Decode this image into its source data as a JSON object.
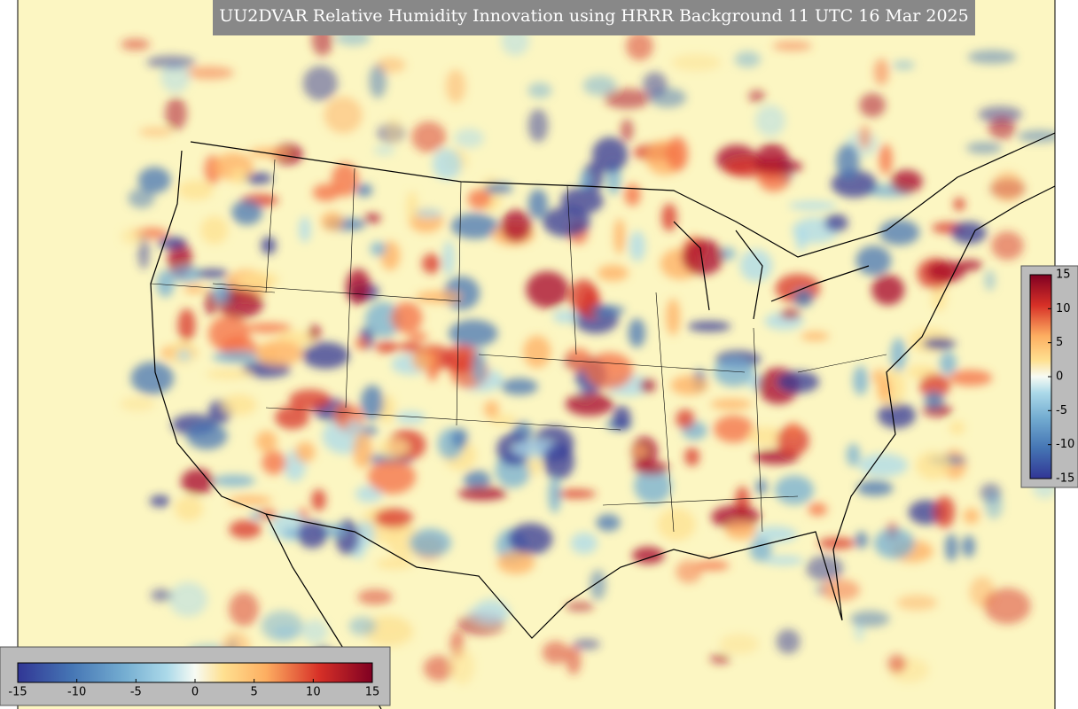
{
  "title": "UU2DVAR Relative Humidity Innovation using HRRR Background 11 UTC 16 Mar 2025",
  "colorbar_vertical": {
    "ticks": [
      15,
      10,
      5,
      0,
      -5,
      -10,
      -15
    ]
  },
  "colorbar_horizontal": {
    "ticks": [
      -15,
      -10,
      -5,
      0,
      5,
      10,
      15
    ]
  }
}
